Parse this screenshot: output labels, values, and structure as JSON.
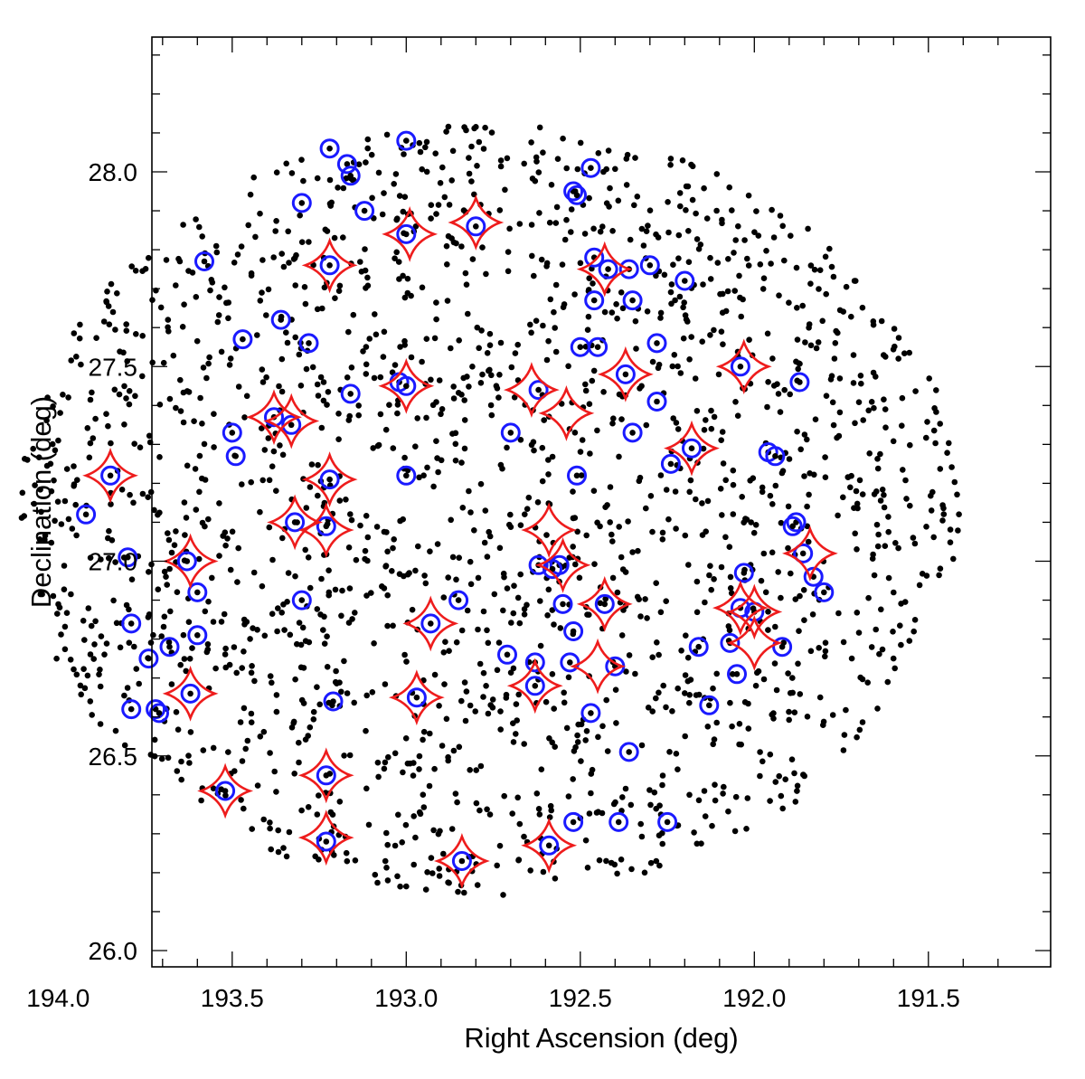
{
  "chart_data": {
    "type": "scatter",
    "xlabel": "Right Ascension  (deg)",
    "ylabel": "Declination  (deg)",
    "xlim": [
      191.3,
      194.15
    ],
    "ylim": [
      25.95,
      28.35
    ],
    "x_reversed": true,
    "xticks": [
      "191.5",
      "192.0",
      "192.5",
      "193.0",
      "193.5",
      "194.0"
    ],
    "xtick_values": [
      191.5,
      192.0,
      192.5,
      193.0,
      193.5,
      194.0
    ],
    "yticks": [
      "26.0",
      "26.5",
      "27.0",
      "27.5",
      "28.0"
    ],
    "ytick_values": [
      26.0,
      26.5,
      27.0,
      27.5,
      28.0
    ],
    "field": {
      "center_ra": 192.76,
      "center_dec": 27.13,
      "radius_ra": 1.35,
      "radius_dec": 0.99
    },
    "series": [
      {
        "marker": "open-circle",
        "color": "#1a1aff",
        "points": [
          [
            193.0,
            28.08
          ],
          [
            193.22,
            28.06
          ],
          [
            193.17,
            28.02
          ],
          [
            193.16,
            27.99
          ],
          [
            192.47,
            28.01
          ],
          [
            192.52,
            27.95
          ],
          [
            192.51,
            27.94
          ],
          [
            193.3,
            27.92
          ],
          [
            193.12,
            27.9
          ],
          [
            192.8,
            27.86
          ],
          [
            193.0,
            27.84
          ],
          [
            193.22,
            27.76
          ],
          [
            192.3,
            27.76
          ],
          [
            192.2,
            27.72
          ],
          [
            192.46,
            27.78
          ],
          [
            192.42,
            27.75
          ],
          [
            192.36,
            27.75
          ],
          [
            193.58,
            27.77
          ],
          [
            192.46,
            27.67
          ],
          [
            192.35,
            27.67
          ],
          [
            193.36,
            27.62
          ],
          [
            193.47,
            27.57
          ],
          [
            192.5,
            27.55
          ],
          [
            192.45,
            27.55
          ],
          [
            192.28,
            27.56
          ],
          [
            193.28,
            27.56
          ],
          [
            192.04,
            27.5
          ],
          [
            191.87,
            27.46
          ],
          [
            192.37,
            27.48
          ],
          [
            192.62,
            27.44
          ],
          [
            193.02,
            27.46
          ],
          [
            193.0,
            27.45
          ],
          [
            193.16,
            27.43
          ],
          [
            192.28,
            27.41
          ],
          [
            193.33,
            27.35
          ],
          [
            193.38,
            27.37
          ],
          [
            192.7,
            27.33
          ],
          [
            192.35,
            27.33
          ],
          [
            193.5,
            27.33
          ],
          [
            193.49,
            27.27
          ],
          [
            191.96,
            27.28
          ],
          [
            191.94,
            27.27
          ],
          [
            192.18,
            27.29
          ],
          [
            192.24,
            27.25
          ],
          [
            192.51,
            27.22
          ],
          [
            193.0,
            27.22
          ],
          [
            193.22,
            27.21
          ],
          [
            193.85,
            27.22
          ],
          [
            191.88,
            27.1
          ],
          [
            191.89,
            27.09
          ],
          [
            193.23,
            27.09
          ],
          [
            193.32,
            27.1
          ],
          [
            193.92,
            27.12
          ],
          [
            192.56,
            26.99
          ],
          [
            192.62,
            26.99
          ],
          [
            192.58,
            26.98
          ],
          [
            193.63,
            27.0
          ],
          [
            193.8,
            27.01
          ],
          [
            191.86,
            27.02
          ],
          [
            191.83,
            26.96
          ],
          [
            191.8,
            26.92
          ],
          [
            192.03,
            26.97
          ],
          [
            192.0,
            26.87
          ],
          [
            192.04,
            26.88
          ],
          [
            192.55,
            26.89
          ],
          [
            192.43,
            26.89
          ],
          [
            192.85,
            26.9
          ],
          [
            192.52,
            26.82
          ],
          [
            192.93,
            26.84
          ],
          [
            193.3,
            26.9
          ],
          [
            193.6,
            26.92
          ],
          [
            193.6,
            26.81
          ],
          [
            193.68,
            26.78
          ],
          [
            193.79,
            26.84
          ],
          [
            192.16,
            26.78
          ],
          [
            192.07,
            26.79
          ],
          [
            191.92,
            26.78
          ],
          [
            192.05,
            26.71
          ],
          [
            192.53,
            26.74
          ],
          [
            192.63,
            26.74
          ],
          [
            192.4,
            26.73
          ],
          [
            192.71,
            26.76
          ],
          [
            192.63,
            26.68
          ],
          [
            193.62,
            26.66
          ],
          [
            193.74,
            26.75
          ],
          [
            192.97,
            26.65
          ],
          [
            193.21,
            26.64
          ],
          [
            192.13,
            26.63
          ],
          [
            192.47,
            26.61
          ],
          [
            193.72,
            26.62
          ],
          [
            193.71,
            26.61
          ],
          [
            193.79,
            26.62
          ],
          [
            192.36,
            26.51
          ],
          [
            193.23,
            26.45
          ],
          [
            193.52,
            26.41
          ],
          [
            192.25,
            26.33
          ],
          [
            192.52,
            26.33
          ],
          [
            192.39,
            26.33
          ],
          [
            192.59,
            26.27
          ],
          [
            193.23,
            26.28
          ],
          [
            192.84,
            26.23
          ]
        ]
      },
      {
        "marker": "four-point-star",
        "color": "#ee1c1c",
        "points": [
          [
            192.8,
            27.87
          ],
          [
            192.99,
            27.84
          ],
          [
            193.22,
            27.76
          ],
          [
            192.43,
            27.75
          ],
          [
            192.03,
            27.5
          ],
          [
            192.64,
            27.44
          ],
          [
            192.37,
            27.48
          ],
          [
            192.54,
            27.38
          ],
          [
            193.0,
            27.45
          ],
          [
            193.33,
            27.36
          ],
          [
            193.38,
            27.37
          ],
          [
            192.18,
            27.29
          ],
          [
            193.22,
            27.21
          ],
          [
            193.85,
            27.22
          ],
          [
            192.59,
            27.08
          ],
          [
            193.23,
            27.08
          ],
          [
            193.32,
            27.1
          ],
          [
            191.84,
            27.02
          ],
          [
            192.55,
            26.99
          ],
          [
            193.62,
            27.0
          ],
          [
            192.0,
            26.87
          ],
          [
            192.04,
            26.88
          ],
          [
            192.43,
            26.89
          ],
          [
            192.0,
            26.79
          ],
          [
            192.93,
            26.84
          ],
          [
            192.45,
            26.73
          ],
          [
            192.63,
            26.68
          ],
          [
            192.97,
            26.65
          ],
          [
            193.62,
            26.66
          ],
          [
            193.23,
            26.45
          ],
          [
            193.52,
            26.41
          ],
          [
            192.59,
            26.27
          ],
          [
            193.23,
            26.29
          ],
          [
            192.84,
            26.23
          ]
        ]
      }
    ]
  }
}
